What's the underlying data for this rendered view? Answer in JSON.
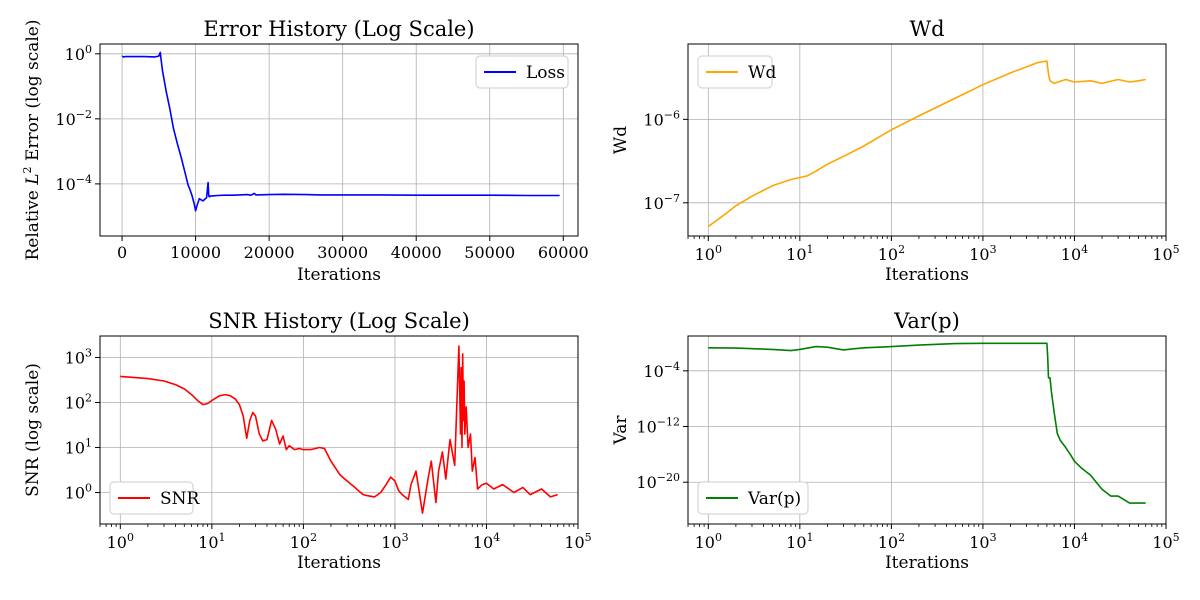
{
  "figure": {
    "background": "#ffffff"
  },
  "chart_data": [
    {
      "id": "error",
      "type": "line",
      "title": "Error History (Log Scale)",
      "xlabel": "Iterations",
      "ylabel_prefix": "Relative ",
      "ylabel_L": "L",
      "ylabel_sup": "2",
      "ylabel_suffix": " Error (log scale)",
      "xscale": "linear",
      "yscale": "log",
      "xlim": [
        -3000,
        62000
      ],
      "ylim": [
        2.5e-06,
        2
      ],
      "xticks": [
        0,
        10000,
        20000,
        30000,
        40000,
        50000,
        60000
      ],
      "xticklabels": [
        "0",
        "10000",
        "20000",
        "30000",
        "40000",
        "50000",
        "60000"
      ],
      "yticks": [
        0.0001,
        0.01,
        1
      ],
      "yticklabels": [
        {
          "base": "10",
          "exp": "−4"
        },
        {
          "base": "10",
          "exp": "−2"
        },
        {
          "base": "10",
          "exp": "0"
        }
      ],
      "grid": true,
      "legend": {
        "placement": "top-right",
        "entries": [
          "Loss"
        ]
      },
      "series": [
        {
          "name": "Loss",
          "color": "#0000ff",
          "x": [
            0,
            200,
            500,
            1500,
            3000,
            4500,
            5000,
            5200,
            5300,
            5500,
            6000,
            6500,
            7000,
            7500,
            8000,
            8500,
            9000,
            9200,
            9500,
            9800,
            10000,
            10200,
            10500,
            11000,
            11500,
            11700,
            11800,
            11900,
            12000,
            12500,
            13000,
            14000,
            15000,
            16000,
            17000,
            17500,
            18000,
            18200,
            20000,
            22000,
            25000,
            27000,
            30000,
            35000,
            40000,
            45000,
            50000,
            55000,
            59500
          ],
          "y": [
            0.85,
            0.8,
            0.82,
            0.82,
            0.82,
            0.8,
            0.85,
            1.1,
            0.7,
            0.3,
            0.07,
            0.02,
            0.005,
            0.0018,
            0.0007,
            0.00025,
            9e-05,
            7e-05,
            4.5e-05,
            2.5e-05,
            1.5e-05,
            2.2e-05,
            3.5e-05,
            3e-05,
            3.8e-05,
            0.00011,
            4.2e-05,
            4e-05,
            4.2e-05,
            4.3e-05,
            4.4e-05,
            4.5e-05,
            4.5e-05,
            4.6e-05,
            4.7e-05,
            4.5e-05,
            5.1e-05,
            4.6e-05,
            4.7e-05,
            4.8e-05,
            4.7e-05,
            4.6e-05,
            4.6e-05,
            4.6e-05,
            4.5e-05,
            4.5e-05,
            4.5e-05,
            4.4e-05,
            4.4e-05
          ]
        }
      ]
    },
    {
      "id": "wd",
      "type": "line",
      "title": "Wd",
      "xlabel": "Iterations",
      "ylabel": "Wd",
      "xscale": "log",
      "yscale": "log",
      "xlim": [
        0.6,
        100000
      ],
      "ylim": [
        4e-08,
        8e-06
      ],
      "xticks": [
        1,
        10,
        100,
        1000,
        10000,
        100000
      ],
      "xticklabels": [
        {
          "base": "10",
          "exp": "0"
        },
        {
          "base": "10",
          "exp": "1"
        },
        {
          "base": "10",
          "exp": "2"
        },
        {
          "base": "10",
          "exp": "3"
        },
        {
          "base": "10",
          "exp": "4"
        },
        {
          "base": "10",
          "exp": "5"
        }
      ],
      "yticks": [
        1e-07,
        1e-06
      ],
      "yticklabels": [
        {
          "base": "10",
          "exp": "−7"
        },
        {
          "base": "10",
          "exp": "−6"
        }
      ],
      "grid": true,
      "legend": {
        "placement": "top-left",
        "entries": [
          "Wd"
        ]
      },
      "series": [
        {
          "name": "Wd",
          "color": "#ffa500",
          "x": [
            1,
            1.5,
            2,
            3,
            5,
            8,
            12,
            15,
            20,
            30,
            50,
            100,
            200,
            500,
            1000,
            2000,
            4000,
            5000,
            5200,
            5400,
            6000,
            8000,
            10000,
            15000,
            20000,
            30000,
            40000,
            50000,
            60000
          ],
          "y": [
            5.2e-08,
            7.2e-08,
            9.2e-08,
            1.2e-07,
            1.6e-07,
            1.9e-07,
            2.1e-07,
            2.4e-07,
            2.9e-07,
            3.6e-07,
            4.8e-07,
            7.5e-07,
            1.1e-06,
            1.8e-06,
            2.6e-06,
            3.6e-06,
            4.8e-06,
            5e-06,
            3.5e-06,
            2.9e-06,
            2.7e-06,
            3e-06,
            2.8e-06,
            2.9e-06,
            2.7e-06,
            3e-06,
            2.8e-06,
            2.9e-06,
            3e-06
          ]
        }
      ]
    },
    {
      "id": "snr",
      "type": "line",
      "title": "SNR History (Log Scale)",
      "xlabel": "Iterations",
      "ylabel": "SNR (log scale)",
      "xscale": "log",
      "yscale": "log",
      "xlim": [
        0.6,
        100000
      ],
      "ylim": [
        0.2,
        3000
      ],
      "xticks": [
        1,
        10,
        100,
        1000,
        10000,
        100000
      ],
      "xticklabels": [
        {
          "base": "10",
          "exp": "0"
        },
        {
          "base": "10",
          "exp": "1"
        },
        {
          "base": "10",
          "exp": "2"
        },
        {
          "base": "10",
          "exp": "3"
        },
        {
          "base": "10",
          "exp": "4"
        },
        {
          "base": "10",
          "exp": "5"
        }
      ],
      "yticks": [
        1,
        10,
        100,
        1000
      ],
      "yticklabels": [
        {
          "base": "10",
          "exp": "0"
        },
        {
          "base": "10",
          "exp": "1"
        },
        {
          "base": "10",
          "exp": "2"
        },
        {
          "base": "10",
          "exp": "3"
        }
      ],
      "grid": true,
      "legend": {
        "placement": "bottom-left",
        "entries": [
          "SNR"
        ]
      },
      "series": [
        {
          "name": "SNR",
          "color": "#ff0000",
          "x": [
            1,
            2,
            3,
            4,
            5,
            6,
            7,
            8,
            9,
            10,
            12,
            14,
            16,
            18,
            20,
            22,
            24,
            26,
            28,
            30,
            33,
            36,
            40,
            45,
            50,
            55,
            60,
            65,
            70,
            80,
            90,
            100,
            120,
            150,
            170,
            200,
            250,
            300,
            350,
            400,
            450,
            500,
            600,
            700,
            800,
            900,
            1000,
            1100,
            1200,
            1400,
            1500,
            1700,
            2000,
            2300,
            2500,
            2800,
            3000,
            3300,
            3600,
            4000,
            4500,
            5000,
            5200,
            5300,
            5400,
            5500,
            5600,
            5700,
            5800,
            6000,
            6300,
            6700,
            7000,
            7500,
            8000,
            9000,
            10000,
            12000,
            15000,
            20000,
            25000,
            30000,
            40000,
            50000,
            60000
          ],
          "y": [
            380,
            340,
            300,
            250,
            200,
            150,
            110,
            90,
            95,
            110,
            140,
            150,
            140,
            120,
            90,
            50,
            16,
            40,
            60,
            50,
            20,
            14,
            15,
            40,
            25,
            12,
            18,
            9,
            11,
            9,
            9.5,
            9,
            9,
            10,
            9.5,
            5,
            2.5,
            1.8,
            1.4,
            1.1,
            0.9,
            0.85,
            0.8,
            1.0,
            1.5,
            2.2,
            1.8,
            1.1,
            0.9,
            0.7,
            1.5,
            3,
            0.35,
            2,
            5,
            0.6,
            3,
            8,
            2,
            15,
            4,
            1800,
            20,
            600,
            10,
            1200,
            40,
            300,
            20,
            80,
            10,
            20,
            3,
            6,
            1.2,
            1.5,
            1.6,
            1.2,
            1.5,
            1.0,
            1.3,
            0.9,
            1.2,
            0.8,
            0.9
          ]
        }
      ]
    },
    {
      "id": "var",
      "type": "line",
      "title": "Var(p)",
      "xlabel": "Iterations",
      "ylabel": "Var",
      "xscale": "log",
      "yscale": "log",
      "xlim": [
        0.6,
        100000
      ],
      "ylim": [
        1e-26,
        10.0
      ],
      "xticks": [
        1,
        10,
        100,
        1000,
        10000,
        100000
      ],
      "xticklabels": [
        {
          "base": "10",
          "exp": "0"
        },
        {
          "base": "10",
          "exp": "1"
        },
        {
          "base": "10",
          "exp": "2"
        },
        {
          "base": "10",
          "exp": "3"
        },
        {
          "base": "10",
          "exp": "4"
        },
        {
          "base": "10",
          "exp": "5"
        }
      ],
      "yticks": [
        1e-20,
        1e-12,
        0.0001
      ],
      "yticklabels": [
        {
          "base": "10",
          "exp": "−20"
        },
        {
          "base": "10",
          "exp": "−12"
        },
        {
          "base": "10",
          "exp": "−4"
        }
      ],
      "grid": true,
      "legend": {
        "placement": "bottom-left",
        "entries": [
          "Var(p)"
        ]
      },
      "series": [
        {
          "name": "Var(p)",
          "color": "#008000",
          "x": [
            1,
            2,
            5,
            8,
            10,
            15,
            20,
            30,
            40,
            50,
            100,
            200,
            500,
            1000,
            2000,
            5000,
            5100,
            5200,
            5400,
            5600,
            6000,
            6500,
            7000,
            8000,
            9000,
            10000,
            12000,
            15000,
            20000,
            25000,
            30000,
            40000,
            50000,
            60000
          ],
          "y": [
            0.2,
            0.18,
            0.12,
            0.08,
            0.12,
            0.3,
            0.25,
            0.1,
            0.15,
            0.2,
            0.3,
            0.5,
            0.8,
            0.9,
            0.9,
            0.9,
            0.01,
            1e-05,
            1e-05,
            1e-07,
            1e-10,
            1e-13,
            1e-14,
            1e-15,
            1e-16,
            1e-17,
            1e-18,
            1e-19,
            1e-21,
            1e-22,
            1e-22,
            1e-23,
            1e-23,
            1e-23
          ]
        }
      ]
    }
  ]
}
